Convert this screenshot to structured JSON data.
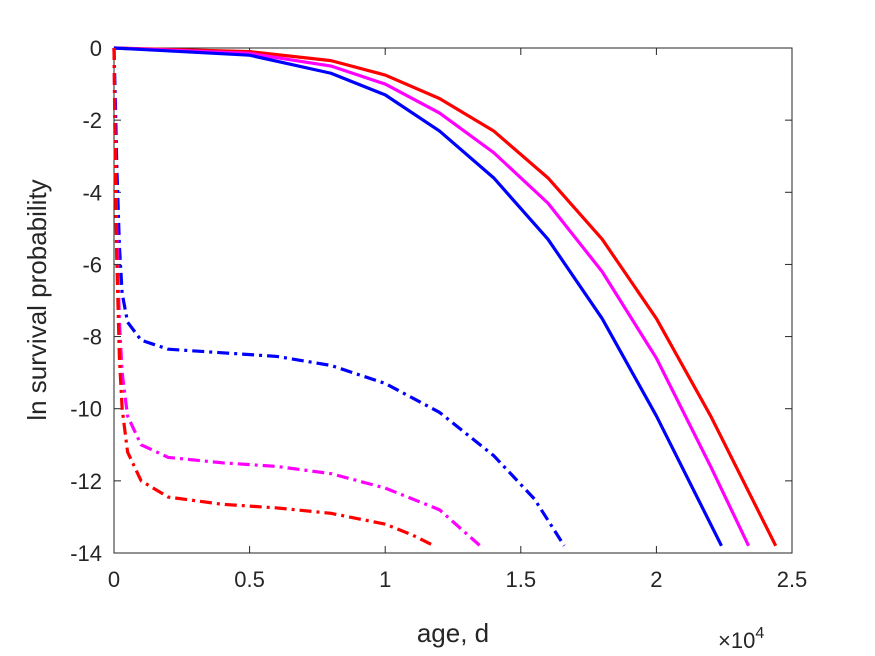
{
  "chart_data": {
    "type": "line",
    "title": "",
    "xlabel": "age, d",
    "ylabel": "ln survival probability",
    "x_multiplier": {
      "base": "×10",
      "exponent": "4"
    },
    "xlim": [
      0,
      25000
    ],
    "ylim": [
      -14,
      0
    ],
    "x_ticks": [
      0,
      5000,
      10000,
      15000,
      20000,
      25000
    ],
    "x_tick_labels": [
      "0",
      "0.5",
      "1",
      "1.5",
      "2",
      "2.5"
    ],
    "y_ticks": [
      0,
      -2,
      -4,
      -6,
      -8,
      -10,
      -12,
      -14
    ],
    "y_tick_labels": [
      "0",
      "-2",
      "-4",
      "-6",
      "-8",
      "-10",
      "-12",
      "-14"
    ],
    "grid": false,
    "legend": "none",
    "series": [
      {
        "color": "#ff0000",
        "style": "solid",
        "points": [
          [
            0,
            0
          ],
          [
            5000,
            -0.1
          ],
          [
            8000,
            -0.35
          ],
          [
            10000,
            -0.75
          ],
          [
            12000,
            -1.4
          ],
          [
            14000,
            -2.3
          ],
          [
            16000,
            -3.6
          ],
          [
            18000,
            -5.3
          ],
          [
            20000,
            -7.5
          ],
          [
            22000,
            -10.2
          ],
          [
            24400,
            -13.8
          ]
        ]
      },
      {
        "color": "#ff00ff",
        "style": "solid",
        "points": [
          [
            0,
            0
          ],
          [
            5000,
            -0.15
          ],
          [
            8000,
            -0.5
          ],
          [
            10000,
            -1.0
          ],
          [
            12000,
            -1.8
          ],
          [
            14000,
            -2.9
          ],
          [
            16000,
            -4.3
          ],
          [
            18000,
            -6.2
          ],
          [
            20000,
            -8.6
          ],
          [
            22000,
            -11.6
          ],
          [
            23400,
            -13.8
          ]
        ]
      },
      {
        "color": "#0000ff",
        "style": "solid",
        "points": [
          [
            0,
            0
          ],
          [
            5000,
            -0.2
          ],
          [
            8000,
            -0.7
          ],
          [
            10000,
            -1.3
          ],
          [
            12000,
            -2.3
          ],
          [
            14000,
            -3.6
          ],
          [
            16000,
            -5.3
          ],
          [
            18000,
            -7.5
          ],
          [
            20000,
            -10.2
          ],
          [
            22400,
            -13.8
          ]
        ]
      },
      {
        "color": "#0000ff",
        "style": "dashdot",
        "points": [
          [
            0,
            0
          ],
          [
            50,
            -1.5
          ],
          [
            100,
            -3.2
          ],
          [
            200,
            -5.5
          ],
          [
            300,
            -6.8
          ],
          [
            500,
            -7.6
          ],
          [
            1000,
            -8.1
          ],
          [
            2000,
            -8.35
          ],
          [
            4000,
            -8.45
          ],
          [
            6000,
            -8.55
          ],
          [
            8000,
            -8.8
          ],
          [
            10000,
            -9.3
          ],
          [
            12000,
            -10.1
          ],
          [
            14000,
            -11.3
          ],
          [
            15500,
            -12.5
          ],
          [
            16600,
            -13.8
          ]
        ]
      },
      {
        "color": "#ff00ff",
        "style": "dashdot",
        "points": [
          [
            0,
            0
          ],
          [
            50,
            -3.0
          ],
          [
            100,
            -5.0
          ],
          [
            200,
            -7.6
          ],
          [
            300,
            -9.0
          ],
          [
            500,
            -10.2
          ],
          [
            1000,
            -11.0
          ],
          [
            2000,
            -11.35
          ],
          [
            4000,
            -11.5
          ],
          [
            6000,
            -11.6
          ],
          [
            8000,
            -11.8
          ],
          [
            10000,
            -12.2
          ],
          [
            12000,
            -12.8
          ],
          [
            13500,
            -13.8
          ]
        ]
      },
      {
        "color": "#ff0000",
        "style": "dashdot",
        "points": [
          [
            0,
            0
          ],
          [
            50,
            -3.5
          ],
          [
            100,
            -5.8
          ],
          [
            200,
            -8.6
          ],
          [
            300,
            -10.0
          ],
          [
            500,
            -11.2
          ],
          [
            1000,
            -12.0
          ],
          [
            2000,
            -12.45
          ],
          [
            4000,
            -12.65
          ],
          [
            6000,
            -12.75
          ],
          [
            8000,
            -12.9
          ],
          [
            10000,
            -13.2
          ],
          [
            11000,
            -13.5
          ],
          [
            11800,
            -13.8
          ]
        ]
      }
    ]
  }
}
